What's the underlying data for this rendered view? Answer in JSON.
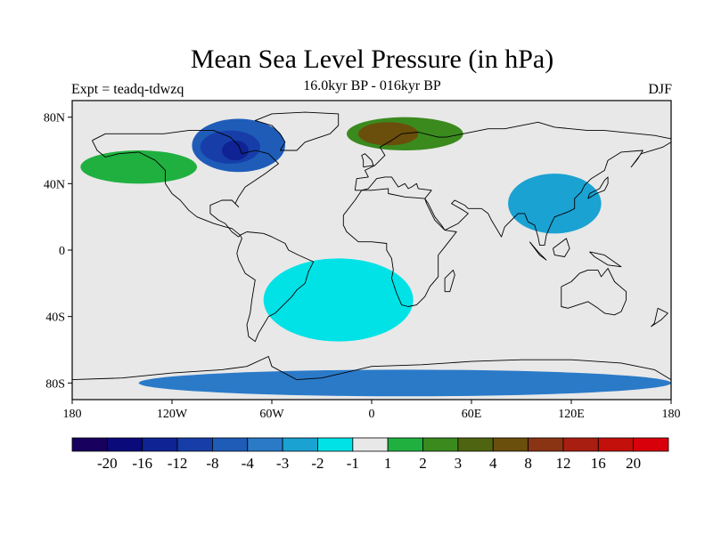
{
  "title": "Mean Sea Level Pressure (in hPa)",
  "experiment": "Expt = teadq-tdwzq",
  "period": "16.0kyr BP - 016kyr BP",
  "season": "DJF",
  "axes": {
    "lat_labels": [
      {
        "lat": 80,
        "text": "80N"
      },
      {
        "lat": 40,
        "text": "40N"
      },
      {
        "lat": 0,
        "text": "0"
      },
      {
        "lat": -40,
        "text": "40S"
      },
      {
        "lat": -80,
        "text": "80S"
      }
    ],
    "lon_labels": [
      {
        "lon": -180,
        "text": "180"
      },
      {
        "lon": -120,
        "text": "120W"
      },
      {
        "lon": -60,
        "text": "60W"
      },
      {
        "lon": 0,
        "text": "0"
      },
      {
        "lon": 60,
        "text": "60E"
      },
      {
        "lon": 120,
        "text": "120E"
      },
      {
        "lon": 180,
        "text": "180"
      }
    ],
    "lat_range": [
      -90,
      90
    ],
    "lon_range": [
      -180,
      180
    ]
  },
  "colorbar": {
    "colors": [
      "#18005e",
      "#0a0a7a",
      "#0f2394",
      "#173ea8",
      "#1e5cb8",
      "#2a7ac8",
      "#1aa2d2",
      "#00e2e6",
      "#e8e8e8",
      "#20b040",
      "#3a8a1e",
      "#4f6410",
      "#6a4e0c",
      "#8a3414",
      "#a81e10",
      "#c4100a",
      "#d8000a"
    ],
    "labels": [
      "-20",
      "-16",
      "-12",
      "-8",
      "-4",
      "-3",
      "-2",
      "-1",
      "1",
      "2",
      "3",
      "4",
      "8",
      "12",
      "16",
      "20"
    ]
  },
  "anomaly_regions": [
    {
      "level": "-4",
      "color": "#1e5cb8",
      "lon": -80,
      "lat": 63,
      "rx": 28,
      "ry": 16
    },
    {
      "level": "-8",
      "color": "#173ea8",
      "lon": -85,
      "lat": 62,
      "rx": 18,
      "ry": 10
    },
    {
      "level": "-12",
      "color": "#0f2394",
      "lon": -82,
      "lat": 60,
      "rx": 8,
      "ry": 6
    },
    {
      "level": "-2",
      "color": "#1aa2d2",
      "lon": 110,
      "lat": 28,
      "rx": 28,
      "ry": 18
    },
    {
      "level": "-1",
      "color": "#00e2e6",
      "lon": -20,
      "lat": -30,
      "rx": 45,
      "ry": 25
    },
    {
      "level": "2",
      "color": "#20b040",
      "lon": -140,
      "lat": 50,
      "rx": 35,
      "ry": 10
    },
    {
      "level": "3",
      "color": "#3a8a1e",
      "lon": 20,
      "lat": 70,
      "rx": 35,
      "ry": 10
    },
    {
      "level": "8",
      "color": "#6a4e0c",
      "lon": 10,
      "lat": 70,
      "rx": 18,
      "ry": 7
    },
    {
      "level": "-3",
      "color": "#2a7ac8",
      "lon": 20,
      "lat": -80,
      "rx": 160,
      "ry": 8
    }
  ],
  "coastlines": [
    {
      "name": "north-america",
      "points": [
        [
          -168,
          66
        ],
        [
          -160,
          70
        ],
        [
          -140,
          70
        ],
        [
          -125,
          70
        ],
        [
          -110,
          72
        ],
        [
          -95,
          72
        ],
        [
          -85,
          68
        ],
        [
          -80,
          63
        ],
        [
          -78,
          58
        ],
        [
          -70,
          60
        ],
        [
          -62,
          58
        ],
        [
          -56,
          52
        ],
        [
          -64,
          46
        ],
        [
          -70,
          42
        ],
        [
          -76,
          38
        ],
        [
          -80,
          32
        ],
        [
          -82,
          28
        ],
        [
          -80,
          26
        ],
        [
          -84,
          30
        ],
        [
          -90,
          30
        ],
        [
          -97,
          27
        ],
        [
          -97,
          22
        ],
        [
          -92,
          18
        ],
        [
          -88,
          16
        ],
        [
          -84,
          11
        ],
        [
          -80,
          8
        ],
        [
          -79,
          9
        ],
        [
          -84,
          13
        ],
        [
          -88,
          14
        ],
        [
          -95,
          16
        ],
        [
          -105,
          20
        ],
        [
          -110,
          24
        ],
        [
          -115,
          30
        ],
        [
          -120,
          34
        ],
        [
          -124,
          40
        ],
        [
          -124,
          48
        ],
        [
          -130,
          54
        ],
        [
          -140,
          59
        ],
        [
          -152,
          58
        ],
        [
          -160,
          56
        ],
        [
          -165,
          60
        ],
        [
          -168,
          66
        ]
      ]
    },
    {
      "name": "south-america",
      "points": [
        [
          -79,
          9
        ],
        [
          -75,
          11
        ],
        [
          -65,
          10
        ],
        [
          -60,
          8
        ],
        [
          -52,
          4
        ],
        [
          -50,
          0
        ],
        [
          -44,
          -3
        ],
        [
          -35,
          -7
        ],
        [
          -38,
          -13
        ],
        [
          -40,
          -20
        ],
        [
          -45,
          -24
        ],
        [
          -48,
          -28
        ],
        [
          -55,
          -35
        ],
        [
          -58,
          -38
        ],
        [
          -62,
          -40
        ],
        [
          -65,
          -45
        ],
        [
          -68,
          -50
        ],
        [
          -70,
          -55
        ],
        [
          -74,
          -52
        ],
        [
          -75,
          -45
        ],
        [
          -73,
          -38
        ],
        [
          -72,
          -30
        ],
        [
          -70,
          -18
        ],
        [
          -76,
          -14
        ],
        [
          -80,
          -6
        ],
        [
          -81,
          -2
        ],
        [
          -80,
          2
        ],
        [
          -78,
          7
        ],
        [
          -79,
          9
        ]
      ]
    },
    {
      "name": "greenland",
      "points": [
        [
          -55,
          60
        ],
        [
          -45,
          60
        ],
        [
          -40,
          65
        ],
        [
          -25,
          70
        ],
        [
          -20,
          75
        ],
        [
          -20,
          82
        ],
        [
          -40,
          83
        ],
        [
          -60,
          82
        ],
        [
          -70,
          78
        ],
        [
          -60,
          75
        ],
        [
          -55,
          70
        ],
        [
          -52,
          65
        ],
        [
          -55,
          60
        ]
      ]
    },
    {
      "name": "eurasia",
      "points": [
        [
          -10,
          36
        ],
        [
          -9,
          43
        ],
        [
          -2,
          44
        ],
        [
          -4,
          48
        ],
        [
          2,
          51
        ],
        [
          5,
          54
        ],
        [
          8,
          57
        ],
        [
          5,
          62
        ],
        [
          12,
          66
        ],
        [
          18,
          70
        ],
        [
          28,
          71
        ],
        [
          40,
          68
        ],
        [
          45,
          68
        ],
        [
          55,
          70
        ],
        [
          70,
          73
        ],
        [
          80,
          73
        ],
        [
          100,
          77
        ],
        [
          110,
          74
        ],
        [
          130,
          72
        ],
        [
          140,
          72
        ],
        [
          160,
          70
        ],
        [
          170,
          69
        ],
        [
          180,
          67
        ],
        [
          180,
          65
        ],
        [
          175,
          62
        ],
        [
          162,
          58
        ],
        [
          156,
          50
        ],
        [
          160,
          55
        ],
        [
          163,
          60
        ],
        [
          150,
          59
        ],
        [
          142,
          54
        ],
        [
          140,
          48
        ],
        [
          132,
          43
        ],
        [
          128,
          39
        ],
        [
          126,
          35
        ],
        [
          122,
          31
        ],
        [
          122,
          25
        ],
        [
          118,
          23
        ],
        [
          110,
          20
        ],
        [
          108,
          16
        ],
        [
          105,
          9
        ],
        [
          104,
          3
        ],
        [
          101,
          3
        ],
        [
          100,
          8
        ],
        [
          98,
          15
        ],
        [
          94,
          17
        ],
        [
          92,
          22
        ],
        [
          88,
          22
        ],
        [
          85,
          19
        ],
        [
          80,
          14
        ],
        [
          78,
          8
        ],
        [
          72,
          18
        ],
        [
          70,
          22
        ],
        [
          66,
          25
        ],
        [
          58,
          25
        ],
        [
          56,
          27
        ],
        [
          50,
          30
        ],
        [
          48,
          28
        ],
        [
          55,
          24
        ],
        [
          58,
          22
        ],
        [
          52,
          16
        ],
        [
          44,
          12
        ],
        [
          42,
          15
        ],
        [
          38,
          20
        ],
        [
          34,
          28
        ],
        [
          32,
          31
        ],
        [
          36,
          36
        ],
        [
          28,
          37
        ],
        [
          27,
          40
        ],
        [
          24,
          38
        ],
        [
          22,
          37
        ],
        [
          20,
          40
        ],
        [
          16,
          38
        ],
        [
          12,
          44
        ],
        [
          8,
          44
        ],
        [
          3,
          43
        ],
        [
          -2,
          37
        ],
        [
          -6,
          36
        ],
        [
          -10,
          36
        ]
      ]
    },
    {
      "name": "africa",
      "points": [
        [
          -17,
          21
        ],
        [
          -17,
          15
        ],
        [
          -15,
          11
        ],
        [
          -8,
          5
        ],
        [
          0,
          5
        ],
        [
          9,
          4
        ],
        [
          9,
          0
        ],
        [
          12,
          -5
        ],
        [
          13,
          -12
        ],
        [
          12,
          -17
        ],
        [
          15,
          -26
        ],
        [
          18,
          -33
        ],
        [
          22,
          -34
        ],
        [
          27,
          -33
        ],
        [
          32,
          -28
        ],
        [
          35,
          -22
        ],
        [
          40,
          -16
        ],
        [
          40,
          -10
        ],
        [
          40,
          -3
        ],
        [
          44,
          2
        ],
        [
          51,
          11
        ],
        [
          44,
          12
        ],
        [
          38,
          18
        ],
        [
          33,
          28
        ],
        [
          32,
          31
        ],
        [
          20,
          32
        ],
        [
          10,
          34
        ],
        [
          10,
          37
        ],
        [
          0,
          36
        ],
        [
          -6,
          36
        ],
        [
          -10,
          30
        ],
        [
          -17,
          21
        ]
      ]
    },
    {
      "name": "australia",
      "points": [
        [
          114,
          -22
        ],
        [
          114,
          -34
        ],
        [
          118,
          -35
        ],
        [
          124,
          -33
        ],
        [
          130,
          -31
        ],
        [
          136,
          -35
        ],
        [
          140,
          -38
        ],
        [
          146,
          -39
        ],
        [
          150,
          -37
        ],
        [
          153,
          -30
        ],
        [
          153,
          -25
        ],
        [
          146,
          -19
        ],
        [
          142,
          -11
        ],
        [
          138,
          -16
        ],
        [
          136,
          -12
        ],
        [
          130,
          -12
        ],
        [
          125,
          -14
        ],
        [
          120,
          -19
        ],
        [
          114,
          -22
        ]
      ]
    },
    {
      "name": "antarctica",
      "points": [
        [
          -180,
          -78
        ],
        [
          -150,
          -77
        ],
        [
          -120,
          -74
        ],
        [
          -90,
          -72
        ],
        [
          -75,
          -70
        ],
        [
          -62,
          -64
        ],
        [
          -60,
          -70
        ],
        [
          -45,
          -78
        ],
        [
          -30,
          -77
        ],
        [
          0,
          -70
        ],
        [
          30,
          -69
        ],
        [
          60,
          -67
        ],
        [
          90,
          -66
        ],
        [
          120,
          -66
        ],
        [
          150,
          -68
        ],
        [
          170,
          -72
        ],
        [
          180,
          -78
        ]
      ]
    },
    {
      "name": "british-isles",
      "points": [
        [
          -5,
          50
        ],
        [
          1,
          51
        ],
        [
          0,
          54
        ],
        [
          -2,
          56
        ],
        [
          -4,
          58
        ],
        [
          -6,
          57
        ],
        [
          -5,
          54
        ],
        [
          -5,
          50
        ]
      ]
    },
    {
      "name": "madagascar",
      "points": [
        [
          44,
          -25
        ],
        [
          47,
          -25
        ],
        [
          50,
          -15
        ],
        [
          49,
          -12
        ],
        [
          44,
          -17
        ],
        [
          44,
          -25
        ]
      ]
    },
    {
      "name": "japan",
      "points": [
        [
          130,
          31
        ],
        [
          135,
          34
        ],
        [
          140,
          36
        ],
        [
          142,
          40
        ],
        [
          142,
          44
        ],
        [
          140,
          42
        ],
        [
          137,
          37
        ],
        [
          131,
          34
        ],
        [
          130,
          31
        ]
      ]
    },
    {
      "name": "new-guinea",
      "points": [
        [
          131,
          -1
        ],
        [
          140,
          -3
        ],
        [
          150,
          -10
        ],
        [
          142,
          -9
        ],
        [
          134,
          -4
        ],
        [
          131,
          -1
        ]
      ]
    },
    {
      "name": "new-zealand",
      "points": [
        [
          172,
          -35
        ],
        [
          178,
          -38
        ],
        [
          174,
          -42
        ],
        [
          168,
          -46
        ],
        [
          170,
          -44
        ],
        [
          172,
          -35
        ]
      ]
    },
    {
      "name": "borneo",
      "points": [
        [
          109,
          1
        ],
        [
          117,
          7
        ],
        [
          119,
          1
        ],
        [
          116,
          -4
        ],
        [
          110,
          -3
        ],
        [
          109,
          1
        ]
      ]
    },
    {
      "name": "sumatra",
      "points": [
        [
          95,
          5
        ],
        [
          100,
          -1
        ],
        [
          105,
          -6
        ],
        [
          101,
          -3
        ],
        [
          95,
          5
        ]
      ]
    }
  ]
}
